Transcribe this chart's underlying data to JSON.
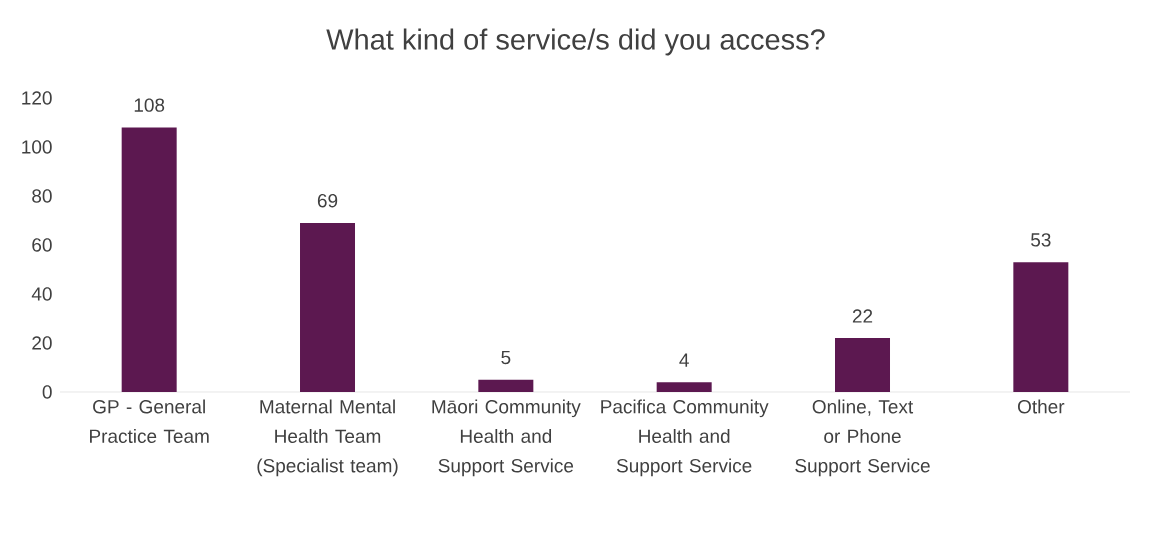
{
  "chart_data": {
    "type": "bar",
    "title": "What kind of service/s did you access?",
    "categories": [
      "GP - General Practice Team",
      "Maternal Mental Health Team (Specialist team)",
      "Māori Community Health and Support Service",
      "Pacifica Community Health and Support Service",
      "Online, Text or Phone Support Service",
      "Other"
    ],
    "values": [
      108,
      69,
      5,
      4,
      22,
      53
    ],
    "color": "#5c1850",
    "ylim": [
      0,
      120
    ],
    "yticks": [
      0,
      20,
      40,
      60,
      80,
      100,
      120
    ],
    "data_labels": true
  }
}
